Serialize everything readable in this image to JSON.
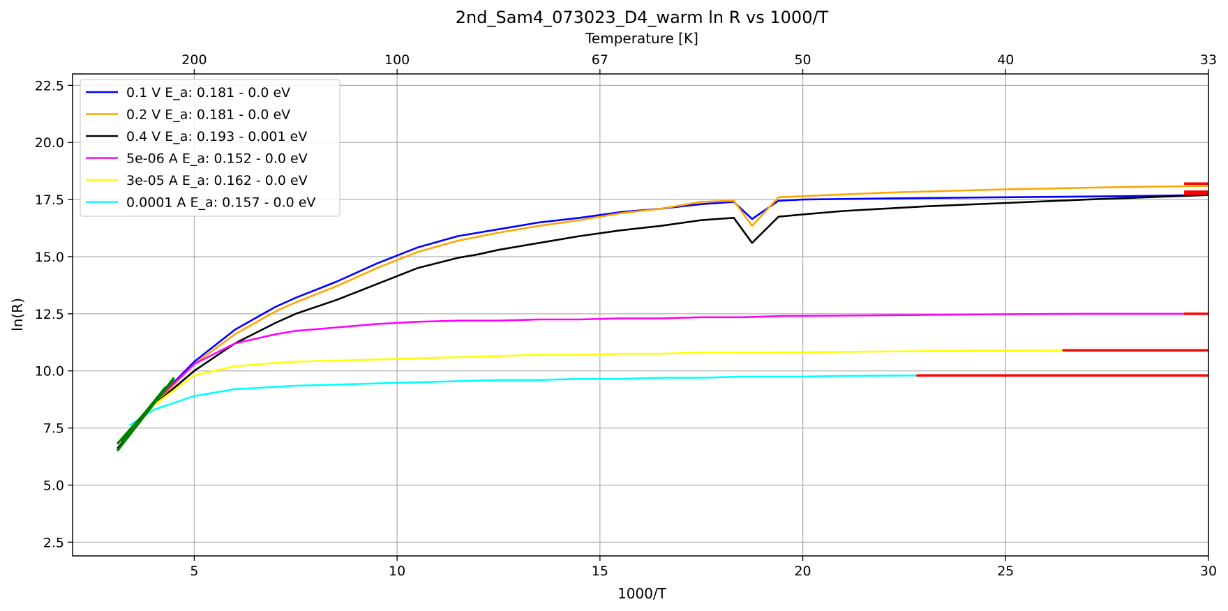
{
  "chart_data": {
    "type": "line",
    "title": "2nd_Sam4_073023_D4_warm ln R vs 1000/T",
    "xlabel": "1000/T",
    "ylabel": "ln(R)",
    "top_xlabel": "Temperature [K]",
    "xlim": [
      2,
      30
    ],
    "ylim": [
      1.9,
      23.0
    ],
    "grid": true,
    "legend_position": "upper-left",
    "x_ticks": [
      5,
      10,
      15,
      20,
      25,
      30
    ],
    "y_ticks": [
      2.5,
      5.0,
      7.5,
      10.0,
      12.5,
      15.0,
      17.5,
      20.0,
      22.5
    ],
    "x_tick_labels": [
      "5",
      "10",
      "15",
      "20",
      "25",
      "30"
    ],
    "y_tick_labels": [
      "2.5",
      "5.0",
      "7.5",
      "10.0",
      "12.5",
      "15.0",
      "17.5",
      "20.0",
      "22.5"
    ],
    "top_ticks": [
      {
        "x": 5,
        "label": "200"
      },
      {
        "x": 10,
        "label": "100"
      },
      {
        "x": 15,
        "label": "67"
      },
      {
        "x": 20,
        "label": "50"
      },
      {
        "x": 25,
        "label": "40"
      },
      {
        "x": 30,
        "label": "33"
      }
    ],
    "series": [
      {
        "name": "0.1 V  E_a: 0.181 - 0.0 eV",
        "color": "#0000ff",
        "x": [
          3.4,
          4.0,
          5.0,
          6.0,
          7.0,
          7.5,
          8.5,
          9.5,
          10.5,
          11.5,
          12.5,
          13.5,
          14.5,
          15.5,
          16.5,
          17.5,
          18.3,
          18.75,
          19.4,
          20.0,
          22.0,
          25.0,
          28.0,
          30.0
        ],
        "y": [
          7.3,
          8.6,
          10.4,
          11.8,
          12.8,
          13.2,
          13.9,
          14.7,
          15.4,
          15.9,
          16.2,
          16.5,
          16.7,
          16.95,
          17.1,
          17.3,
          17.4,
          16.65,
          17.45,
          17.5,
          17.55,
          17.6,
          17.65,
          17.7
        ]
      },
      {
        "name": "0.2 V  E_a: 0.181 - 0.0 eV",
        "color": "#ffa500",
        "x": [
          3.4,
          4.0,
          5.0,
          6.0,
          7.0,
          7.5,
          8.5,
          9.5,
          10.5,
          11.5,
          12.5,
          13.5,
          14.5,
          15.5,
          16.5,
          17.5,
          18.3,
          18.75,
          19.4,
          20.0,
          22.0,
          25.0,
          28.0,
          30.0
        ],
        "y": [
          7.2,
          8.5,
          10.3,
          11.6,
          12.6,
          13.0,
          13.7,
          14.5,
          15.2,
          15.7,
          16.05,
          16.35,
          16.6,
          16.9,
          17.1,
          17.4,
          17.45,
          16.35,
          17.6,
          17.65,
          17.8,
          17.95,
          18.05,
          18.1
        ]
      },
      {
        "name": "0.4 V  E_a: 0.193 - 0.001 eV",
        "color": "#000000",
        "x": [
          3.1,
          4.0,
          5.0,
          6.0,
          7.0,
          7.5,
          8.5,
          9.5,
          10.5,
          11.5,
          12.0,
          12.5,
          13.5,
          14.5,
          15.5,
          16.5,
          17.5,
          18.3,
          18.75,
          19.4,
          20.0,
          21.0,
          23.0,
          25.0,
          27.0,
          30.0
        ],
        "y": [
          6.6,
          8.5,
          10.0,
          11.2,
          12.1,
          12.5,
          13.1,
          13.8,
          14.5,
          14.95,
          15.1,
          15.3,
          15.6,
          15.9,
          16.15,
          16.35,
          16.6,
          16.7,
          15.6,
          16.75,
          16.85,
          17.0,
          17.2,
          17.35,
          17.5,
          17.7
        ]
      },
      {
        "name": "5e-06 A E_a: 0.152 - 0.0 eV",
        "color": "#ff00ff",
        "x": [
          3.4,
          4.0,
          5.0,
          6.0,
          7.0,
          7.5,
          8.5,
          9.5,
          10.5,
          11.5,
          12.5,
          13.5,
          14.5,
          15.5,
          16.5,
          17.5,
          18.5,
          19.5,
          21.0,
          23.0,
          25.0,
          27.0,
          30.0
        ],
        "y": [
          7.3,
          8.6,
          10.3,
          11.2,
          11.6,
          11.75,
          11.9,
          12.05,
          12.15,
          12.2,
          12.2,
          12.25,
          12.25,
          12.3,
          12.3,
          12.35,
          12.35,
          12.4,
          12.42,
          12.45,
          12.48,
          12.5,
          12.5
        ]
      },
      {
        "name": "3e-05 A E_a: 0.162 - 0.0 eV",
        "color": "#ffff00",
        "x": [
          3.4,
          4.0,
          5.0,
          6.0,
          7.0,
          7.5,
          8.5,
          9.5,
          10.5,
          11.5,
          12.5,
          13.5,
          14.5,
          15.5,
          16.5,
          17.5,
          18.5,
          20.0,
          22.0,
          24.0,
          26.5
        ],
        "y": [
          7.2,
          8.5,
          9.8,
          10.2,
          10.35,
          10.4,
          10.45,
          10.5,
          10.55,
          10.6,
          10.65,
          10.7,
          10.7,
          10.75,
          10.75,
          10.8,
          10.8,
          10.82,
          10.85,
          10.88,
          10.9
        ]
      },
      {
        "name": "0.0001 A E_a: 0.157 - 0.0 eV",
        "color": "#00ffff",
        "x": [
          3.4,
          4.0,
          5.0,
          6.0,
          7.0,
          7.5,
          8.5,
          9.5,
          10.5,
          11.5,
          12.5,
          13.5,
          14.5,
          15.5,
          16.5,
          17.5,
          18.5,
          20.0,
          21.0,
          22.8
        ],
        "y": [
          7.6,
          8.3,
          8.9,
          9.2,
          9.3,
          9.35,
          9.4,
          9.45,
          9.5,
          9.55,
          9.6,
          9.6,
          9.65,
          9.65,
          9.7,
          9.7,
          9.75,
          9.75,
          9.78,
          9.8
        ]
      }
    ],
    "fit_lines": [
      {
        "color": "#008000",
        "x": [
          3.1,
          4.5
        ],
        "y": [
          6.5,
          9.7
        ]
      },
      {
        "color": "#008000",
        "x": [
          3.1,
          4.5
        ],
        "y": [
          6.8,
          9.6
        ]
      },
      {
        "color": "#008000",
        "x": [
          3.2,
          4.3
        ],
        "y": [
          6.9,
          9.3
        ]
      },
      {
        "color": "#ff0000",
        "x": [
          29.4,
          30.0
        ],
        "y": [
          18.2,
          18.2
        ]
      },
      {
        "color": "#ff0000",
        "x": [
          29.4,
          30.0
        ],
        "y": [
          17.85,
          17.85
        ]
      },
      {
        "color": "#ff0000",
        "x": [
          29.4,
          30.0
        ],
        "y": [
          17.75,
          17.75
        ]
      },
      {
        "color": "#ff0000",
        "x": [
          29.4,
          30.0
        ],
        "y": [
          12.5,
          12.5
        ]
      },
      {
        "color": "#ff0000",
        "x": [
          26.4,
          30.0
        ],
        "y": [
          10.9,
          10.9
        ]
      },
      {
        "color": "#ff0000",
        "x": [
          22.8,
          30.0
        ],
        "y": [
          9.8,
          9.8
        ]
      }
    ]
  }
}
